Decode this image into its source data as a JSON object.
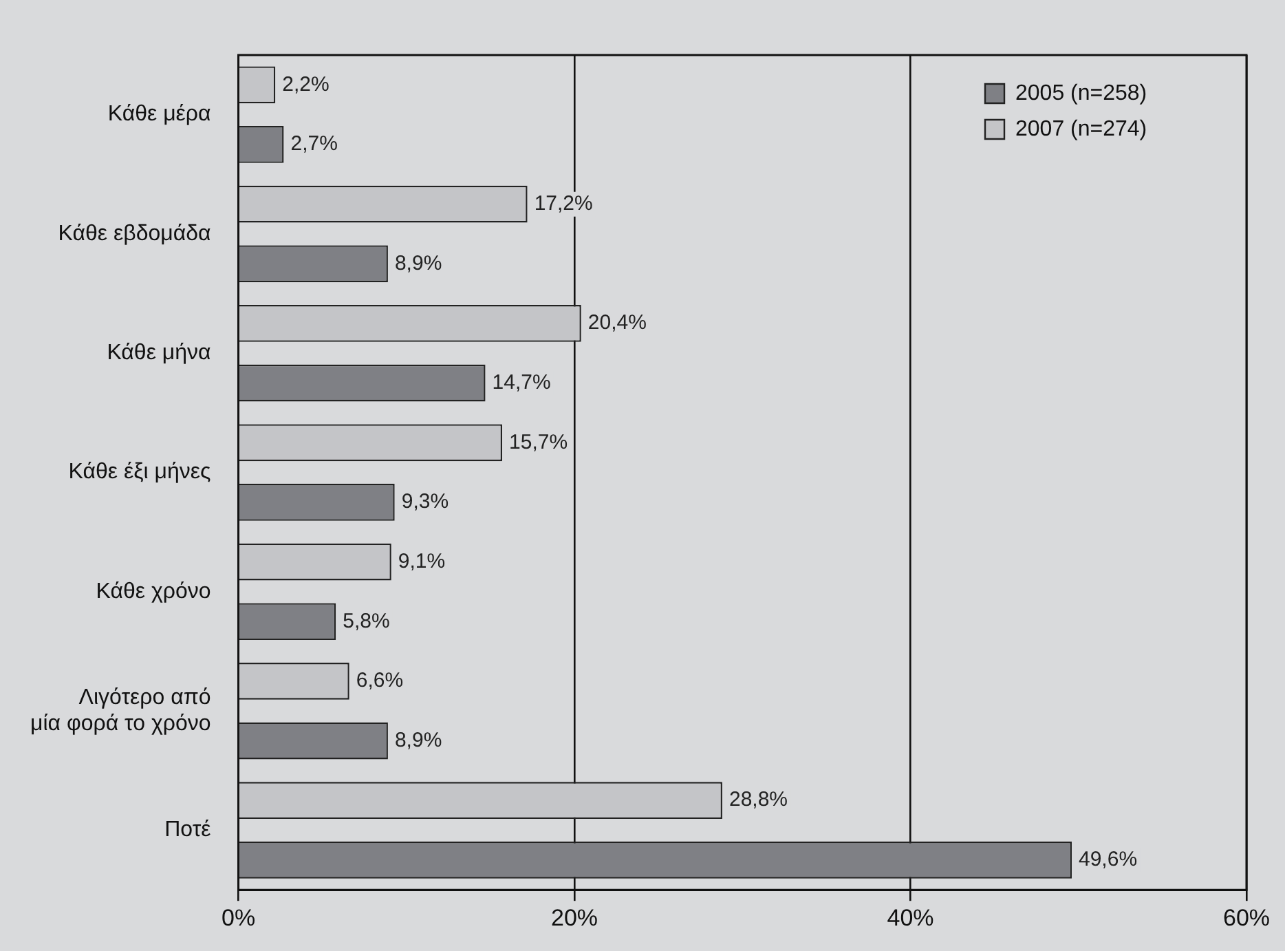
{
  "chart_data": {
    "type": "bar",
    "orientation": "horizontal",
    "categories": [
      "Κάθε μέρα",
      "Κάθε εβδομάδα",
      "Κάθε μήνα",
      "Κάθε έξι μήνες",
      "Κάθε χρόνο",
      "Λιγότερο από\nμία φορά το χρόνο",
      "Ποτέ"
    ],
    "series": [
      {
        "name": "2005 (n=258)",
        "color": "#7f8085",
        "values": [
          2.7,
          8.9,
          14.7,
          9.3,
          5.8,
          8.9,
          49.6
        ],
        "value_labels": [
          "2,7%",
          "8,9%",
          "14,7%",
          "9,3%",
          "5,8%",
          "8,9%",
          "49,6%"
        ]
      },
      {
        "name": "2007 (n=274)",
        "color": "#c4c5c8",
        "values": [
          2.2,
          17.2,
          20.4,
          15.7,
          9.1,
          6.6,
          28.8
        ],
        "value_labels": [
          "2,2%",
          "17,2%",
          "20,4%",
          "15,7%",
          "9,1%",
          "6,6%",
          "28,8%"
        ]
      }
    ],
    "xlim": [
      0,
      60
    ],
    "xticks": [
      {
        "value": 0,
        "label": "0%"
      },
      {
        "value": 20,
        "label": "20%"
      },
      {
        "value": 40,
        "label": "40%"
      },
      {
        "value": 60,
        "label": "60%"
      }
    ],
    "grid": "x",
    "legend": "top right"
  }
}
